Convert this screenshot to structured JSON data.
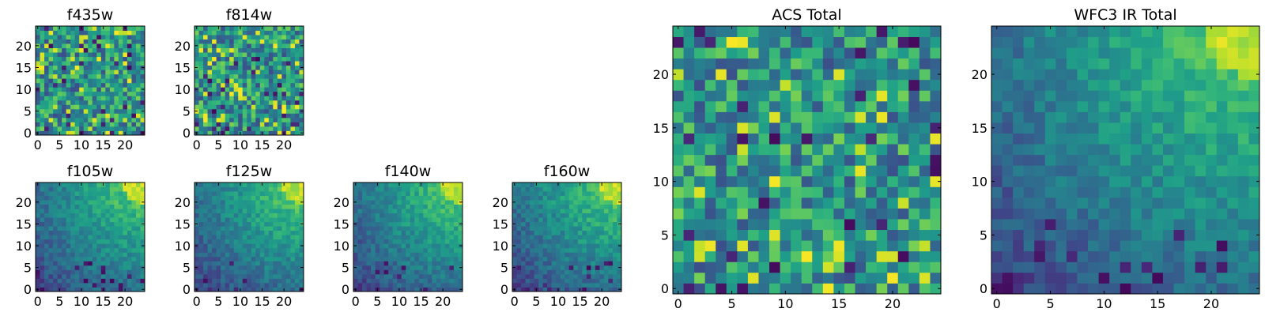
{
  "chart_data": [
    {
      "type": "heatmap",
      "title": "f435w",
      "grid_size": 25,
      "xlim": [
        0,
        24
      ],
      "ylim": [
        0,
        24
      ],
      "xticks": [
        0,
        5,
        10,
        15,
        20
      ],
      "yticks": [
        0,
        5,
        10,
        15,
        20
      ],
      "colormap": "viridis",
      "pattern": "noise",
      "seed": 11
    },
    {
      "type": "heatmap",
      "title": "f814w",
      "grid_size": 25,
      "xlim": [
        0,
        24
      ],
      "ylim": [
        0,
        24
      ],
      "xticks": [
        0,
        5,
        10,
        15,
        20
      ],
      "yticks": [
        0,
        5,
        10,
        15,
        20
      ],
      "colormap": "viridis",
      "pattern": "noise",
      "seed": 23
    },
    {
      "type": "heatmap",
      "title": "f105w",
      "grid_size": 25,
      "xlim": [
        0,
        24
      ],
      "ylim": [
        0,
        24
      ],
      "xticks": [
        0,
        5,
        10,
        15,
        20
      ],
      "yticks": [
        0,
        5,
        10,
        15,
        20
      ],
      "colormap": "viridis",
      "pattern": "corner-gradient",
      "seed": 37
    },
    {
      "type": "heatmap",
      "title": "f125w",
      "grid_size": 25,
      "xlim": [
        0,
        24
      ],
      "ylim": [
        0,
        24
      ],
      "xticks": [
        0,
        5,
        10,
        15,
        20
      ],
      "yticks": [
        0,
        5,
        10,
        15,
        20
      ],
      "colormap": "viridis",
      "pattern": "corner-gradient",
      "seed": 41
    },
    {
      "type": "heatmap",
      "title": "f140w",
      "grid_size": 25,
      "xlim": [
        0,
        24
      ],
      "ylim": [
        0,
        24
      ],
      "xticks": [
        0,
        5,
        10,
        15,
        20
      ],
      "yticks": [
        0,
        5,
        10,
        15,
        20
      ],
      "colormap": "viridis",
      "pattern": "corner-gradient",
      "seed": 53
    },
    {
      "type": "heatmap",
      "title": "f160w",
      "grid_size": 25,
      "xlim": [
        0,
        24
      ],
      "ylim": [
        0,
        24
      ],
      "xticks": [
        0,
        5,
        10,
        15,
        20
      ],
      "yticks": [
        0,
        5,
        10,
        15,
        20
      ],
      "colormap": "viridis",
      "pattern": "corner-gradient",
      "seed": 67
    },
    {
      "type": "heatmap",
      "title": "ACS Total",
      "grid_size": 25,
      "xlim": [
        0,
        24
      ],
      "ylim": [
        0,
        24
      ],
      "xticks": [
        0,
        5,
        10,
        15,
        20
      ],
      "yticks": [
        0,
        5,
        10,
        15,
        20
      ],
      "colormap": "viridis",
      "pattern": "noise",
      "seed": 79
    },
    {
      "type": "heatmap",
      "title": "WFC3 IR Total",
      "grid_size": 25,
      "xlim": [
        0,
        24
      ],
      "ylim": [
        0,
        24
      ],
      "xticks": [
        0,
        5,
        10,
        15,
        20
      ],
      "yticks": [
        0,
        5,
        10,
        15,
        20
      ],
      "colormap": "viridis",
      "pattern": "corner-gradient",
      "seed": 97
    }
  ]
}
